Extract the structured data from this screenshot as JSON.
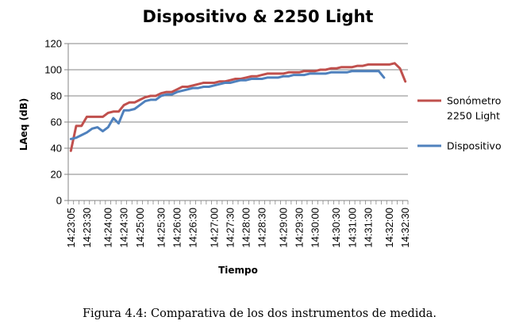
{
  "chart_data": {
    "type": "line",
    "title": "Dispositivo & 2250 Light",
    "xlabel": "Tiempo",
    "ylabel": "LAeq (dB)",
    "ylim": [
      0,
      120
    ],
    "yticks": [
      0,
      20,
      40,
      60,
      80,
      100,
      120
    ],
    "grid": true,
    "legend_position": "right",
    "x_ticks": [
      "14:23:05",
      "14:23:30",
      "14:24:00",
      "14:24:30",
      "14:25:00",
      "14:25:30",
      "14:26:00",
      "14:26:30",
      "14:27:00",
      "14:27:30",
      "14:28:00",
      "14:28:30",
      "14:29:00",
      "14:29:30",
      "14:30:00",
      "14:30:30",
      "14:31:00",
      "14:31:30",
      "14:32:00",
      "14:32:30"
    ],
    "series": [
      {
        "name": "Sonómetro 2250 Light",
        "name_lines": [
          "Sonómetro",
          "2250 Light"
        ],
        "color": "#c0504d",
        "values": [
          38,
          57,
          57,
          64,
          64,
          64,
          64,
          67,
          68,
          68,
          73,
          75,
          75,
          77,
          79,
          80,
          80,
          82,
          83,
          83,
          85,
          87,
          87,
          88,
          89,
          90,
          90,
          90,
          91,
          91,
          92,
          93,
          93,
          94,
          95,
          95,
          96,
          97,
          97,
          97,
          97,
          98,
          98,
          98,
          99,
          99,
          99,
          100,
          100,
          101,
          101,
          102,
          102,
          102,
          103,
          103,
          104,
          104,
          104,
          104,
          104,
          105,
          101,
          91
        ]
      },
      {
        "name": "Dispositivo",
        "name_lines": [
          "Dispositivo"
        ],
        "color": "#4f81bd",
        "values": [
          47,
          48,
          50,
          52,
          55,
          56,
          53,
          56,
          63,
          59,
          69,
          69,
          70,
          73,
          76,
          77,
          77,
          80,
          81,
          81,
          83,
          84,
          85,
          86,
          86,
          87,
          87,
          88,
          89,
          90,
          90,
          91,
          92,
          92,
          93,
          93,
          93,
          94,
          94,
          94,
          95,
          95,
          96,
          96,
          96,
          97,
          97,
          97,
          97,
          98,
          98,
          98,
          98,
          99,
          99,
          99,
          99,
          99,
          99,
          94
        ]
      }
    ]
  },
  "caption": "Figura 4.4: Comparativa de los dos instrumentos de medida."
}
